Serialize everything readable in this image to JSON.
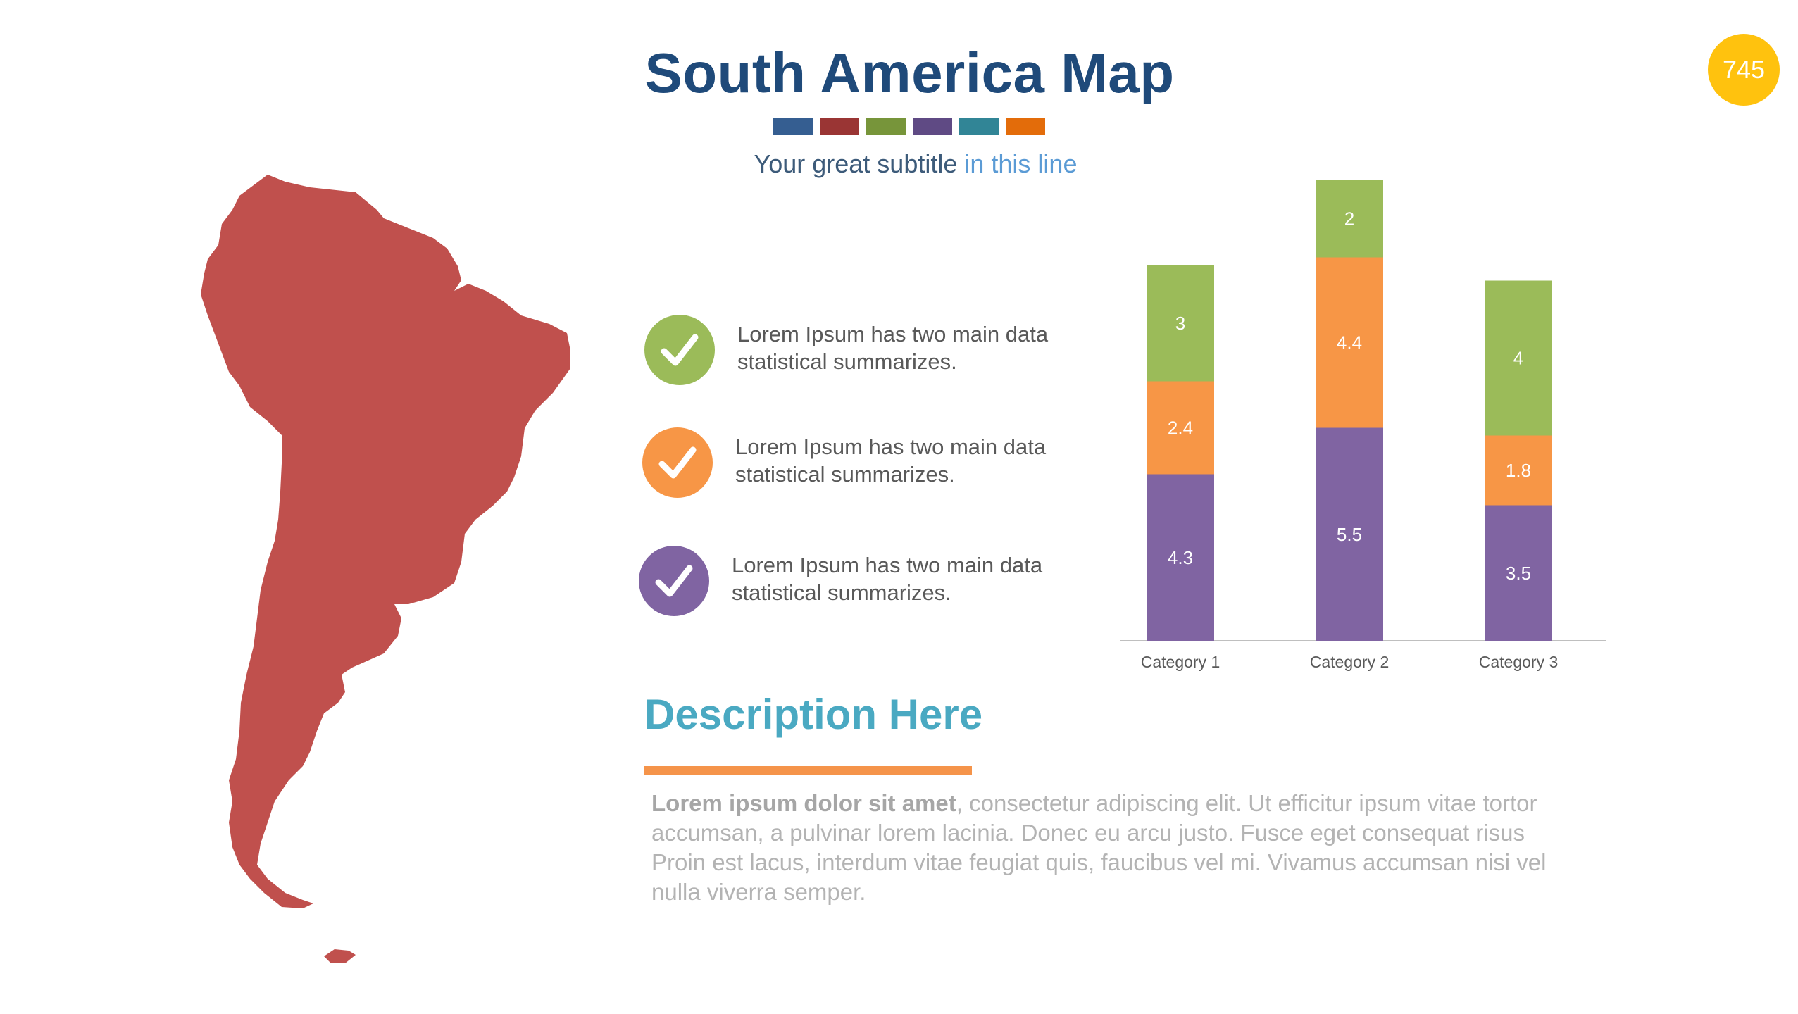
{
  "slide": {
    "title": "South America Map",
    "subtitle_main": "Your great subtitle",
    "subtitle_highlight": "in this line",
    "page_number": "745",
    "swatches": [
      "#355e91",
      "#9a3534",
      "#77953a",
      "#5f4a84",
      "#318596",
      "#e36c0a"
    ]
  },
  "map": {
    "color": "#c0504d"
  },
  "checklist": [
    {
      "text": "Lorem Ipsum has two main data statistical summarizes.",
      "color": "#9bbb59",
      "icon": "check-icon"
    },
    {
      "text": "Lorem Ipsum has two main data statistical summarizes.",
      "color": "#f79646",
      "icon": "check-icon"
    },
    {
      "text": "Lorem Ipsum has two main data statistical summarizes.",
      "color": "#8064a2",
      "icon": "check-icon"
    }
  ],
  "chart_data": {
    "type": "bar",
    "stacked": true,
    "categories": [
      "Category 1",
      "Category 2",
      "Category 3"
    ],
    "series": [
      {
        "values": [
          4.3,
          5.5,
          3.5
        ],
        "color": "#8064a2"
      },
      {
        "values": [
          2.4,
          4.4,
          1.8
        ],
        "color": "#f79646"
      },
      {
        "values": [
          3,
          2,
          4
        ],
        "color": "#9bbb59"
      }
    ],
    "ylim": [
      0,
      12
    ],
    "grid": false,
    "legend": "none"
  },
  "description": {
    "title": "Description Here",
    "lead": "Lorem ipsum dolor sit amet",
    "body": ", consectetur adipiscing elit. Ut efficitur ipsum vitae tortor accumsan, a pulvinar lorem lacinia. Donec eu arcu justo. Fusce eget consequat risus Proin est lacus, interdum vitae feugiat quis, faucibus vel mi.  Vivamus accumsan nisi vel nulla viverra semper."
  }
}
